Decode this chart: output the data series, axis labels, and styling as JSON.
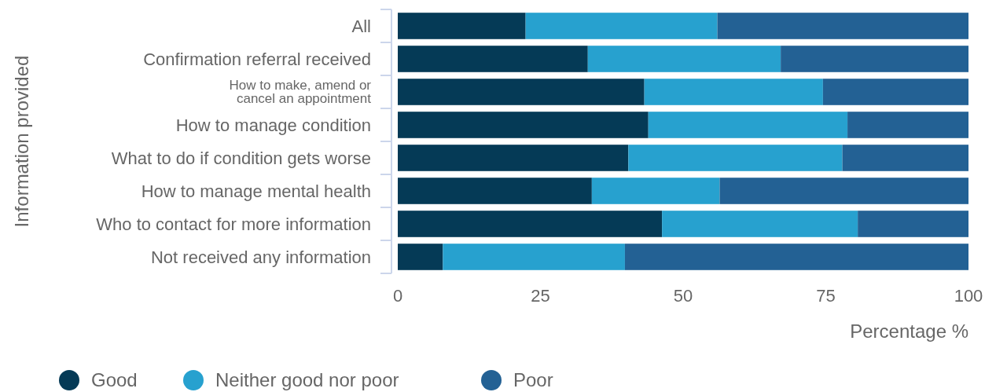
{
  "chart_data": {
    "type": "bar",
    "orientation": "horizontal",
    "stacked": true,
    "ylabel": "Information provided",
    "xlabel": "Percentage %",
    "categories": [
      "All",
      "Confirmation referral received",
      "How to make, amend or cancel an appointment",
      "How to manage condition",
      "What to do if condition gets worse",
      "How to manage mental health",
      "Who to contact for more information",
      "Not received any information"
    ],
    "series": [
      {
        "name": "Good",
        "color": "#053a56",
        "values": [
          22.4,
          33.3,
          43.2,
          43.9,
          40.4,
          34.0,
          46.3,
          7.9
        ]
      },
      {
        "name": "Neither good nor poor",
        "color": "#27a1cf",
        "values": [
          33.6,
          33.8,
          31.3,
          34.9,
          37.5,
          22.4,
          34.3,
          31.9
        ]
      },
      {
        "name": "Poor",
        "color": "#236194",
        "values": [
          44.0,
          32.9,
          25.5,
          21.2,
          22.1,
          43.6,
          19.4,
          60.2
        ]
      }
    ],
    "xlim": [
      0,
      100
    ],
    "xticks": [
      0,
      25,
      50,
      75,
      100
    ],
    "grid": false,
    "legend": "bottom left"
  }
}
